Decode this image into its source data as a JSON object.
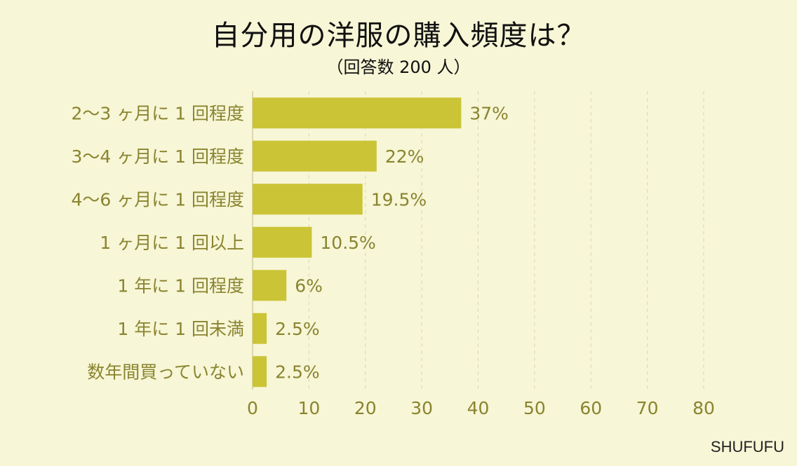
{
  "chart_data": {
    "type": "bar",
    "orientation": "horizontal",
    "title": "自分用の洋服の購入頻度は？",
    "subtitle": "（回答数 200 人）",
    "categories": [
      "2～3 ヶ月に 1 回程度",
      "3～4 ヶ月に 1 回程度",
      "4～6 ヶ月に 1 回程度",
      "1 ヶ月に 1 回以上",
      "1 年に 1 回程度",
      "1 年に 1 回未満",
      "数年間買っていない"
    ],
    "values": [
      37,
      22,
      19.5,
      10.5,
      6,
      2.5,
      2.5
    ],
    "value_labels": [
      "37%",
      "22%",
      "19.5%",
      "10.5%",
      "6%",
      "2.5%",
      "2.5%"
    ],
    "xlim": [
      0,
      80
    ],
    "xticks": [
      0,
      10,
      20,
      30,
      40,
      50,
      60,
      70,
      80
    ],
    "grid": true,
    "bar_color": "#cbc436",
    "text_color": "#8a8430"
  },
  "brand": "SHUFUFU"
}
